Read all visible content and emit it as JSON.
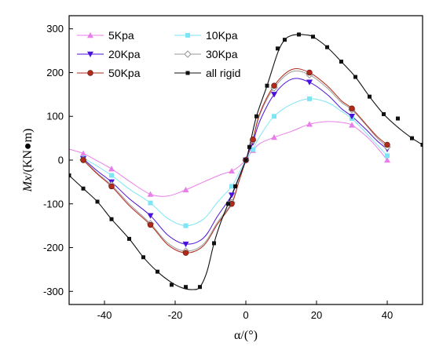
{
  "chart_data": {
    "type": "line",
    "xlabel": "α/(°)",
    "ylabel": "Mx/(KN●m)",
    "ylabel_italic_part": "Mx",
    "ylabel_rest": "/(KN●m)",
    "xlim": [
      -50,
      50
    ],
    "ylim": [
      -330,
      330
    ],
    "xticks": [
      -40,
      -20,
      0,
      20,
      40
    ],
    "yticks": [
      -300,
      -200,
      -100,
      0,
      100,
      200,
      300
    ],
    "grid": false,
    "legend_position": "top-left",
    "series": [
      {
        "name": "5Kpa",
        "color": "#e87fe8",
        "marker": "triangle-up",
        "x": [
          -46,
          -38,
          -27,
          -17,
          -4,
          0,
          2,
          8,
          18,
          30,
          40
        ],
        "y": [
          15,
          -20,
          -78,
          -68,
          -25,
          0,
          22,
          52,
          82,
          80,
          0
        ],
        "curve_x": [
          -50,
          -46,
          -42,
          -38,
          -33,
          -27,
          -22,
          -17,
          -12,
          -7,
          -4,
          -2,
          0,
          1,
          2,
          4,
          8,
          13,
          18,
          23,
          27,
          30,
          34,
          37,
          40
        ],
        "curve_y": [
          25,
          15,
          -2,
          -20,
          -48,
          -78,
          -82,
          -68,
          -50,
          -33,
          -25,
          -15,
          0,
          12,
          22,
          38,
          52,
          66,
          82,
          88,
          86,
          80,
          55,
          30,
          0
        ]
      },
      {
        "name": "10Kpa",
        "color": "#7ee5f5",
        "marker": "square",
        "x": [
          -46,
          -38,
          -27,
          -17,
          -4,
          0,
          2,
          8,
          18,
          30,
          40
        ],
        "y": [
          5,
          -35,
          -98,
          -150,
          -60,
          0,
          24,
          100,
          140,
          95,
          10
        ],
        "curve_x": [
          -46,
          -42,
          -38,
          -33,
          -27,
          -22,
          -17,
          -12,
          -8,
          -4,
          -2,
          0,
          1,
          2,
          4,
          8,
          13,
          18,
          23,
          27,
          30,
          34,
          37,
          40
        ],
        "curve_y": [
          5,
          -14,
          -35,
          -66,
          -98,
          -134,
          -150,
          -135,
          -96,
          -60,
          -30,
          0,
          12,
          24,
          55,
          100,
          128,
          140,
          132,
          112,
          95,
          62,
          36,
          10
        ]
      },
      {
        "name": "20Kpa",
        "color": "#4a10dc",
        "marker": "triangle-down",
        "x": [
          -46,
          -38,
          -27,
          -17,
          -4,
          0,
          2,
          8,
          18,
          30,
          40
        ],
        "y": [
          3,
          -50,
          -127,
          -192,
          -80,
          0,
          40,
          150,
          178,
          100,
          25
        ],
        "curve_x": [
          -46,
          -42,
          -38,
          -33,
          -27,
          -22,
          -17,
          -12,
          -8,
          -4,
          -2,
          0,
          1,
          2,
          4,
          8,
          13,
          18,
          23,
          27,
          30,
          34,
          37,
          40
        ],
        "curve_y": [
          3,
          -25,
          -50,
          -88,
          -127,
          -172,
          -192,
          -178,
          -128,
          -80,
          -40,
          0,
          20,
          40,
          90,
          150,
          185,
          178,
          150,
          118,
          100,
          70,
          45,
          25
        ]
      },
      {
        "name": "30Kpa",
        "color": "#9a9a9a",
        "marker": "diamond-open",
        "x": [
          -46,
          -38,
          -27,
          -17,
          -4,
          0,
          2,
          8,
          18,
          30,
          40
        ],
        "y": [
          1,
          -57,
          -145,
          -208,
          -97,
          0,
          45,
          165,
          195,
          115,
          30
        ],
        "curve_x": [
          -46,
          -42,
          -38,
          -33,
          -27,
          -22,
          -17,
          -12,
          -8,
          -4,
          -2,
          0,
          1,
          2,
          4,
          8,
          13,
          18,
          23,
          27,
          30,
          34,
          37,
          40
        ],
        "curve_y": [
          1,
          -30,
          -57,
          -100,
          -145,
          -190,
          -208,
          -192,
          -142,
          -97,
          -48,
          0,
          23,
          45,
          105,
          165,
          202,
          195,
          165,
          132,
          115,
          80,
          52,
          30
        ]
      },
      {
        "name": "50Kpa",
        "color": "#b22a1a",
        "marker": "circle",
        "x": [
          -46,
          -38,
          -27,
          -17,
          -4,
          0,
          2,
          8,
          18,
          30,
          40
        ],
        "y": [
          0,
          -60,
          -148,
          -212,
          -100,
          0,
          47,
          170,
          200,
          118,
          35
        ],
        "curve_x": [
          -46,
          -42,
          -38,
          -33,
          -27,
          -22,
          -17,
          -12,
          -8,
          -4,
          -2,
          0,
          1,
          2,
          4,
          8,
          13,
          18,
          23,
          27,
          30,
          34,
          37,
          40
        ],
        "curve_y": [
          0,
          -32,
          -60,
          -104,
          -148,
          -194,
          -212,
          -196,
          -146,
          -100,
          -50,
          0,
          24,
          47,
          108,
          170,
          207,
          200,
          170,
          136,
          118,
          82,
          55,
          35
        ]
      },
      {
        "name": "all rigid",
        "color": "#111111",
        "marker": "square-filled",
        "x": [
          -50,
          -46,
          -42,
          -38,
          -33,
          -29,
          -25,
          -21,
          -17,
          -13,
          -9,
          -5,
          -3,
          0,
          1,
          3,
          6,
          9,
          11,
          15,
          19,
          23,
          27,
          31,
          35,
          39,
          43,
          47,
          50
        ],
        "y": [
          -35,
          -65,
          -95,
          -135,
          -180,
          -222,
          -255,
          -285,
          -290,
          -290,
          -190,
          -100,
          -60,
          0,
          30,
          100,
          170,
          255,
          275,
          287,
          282,
          258,
          225,
          190,
          145,
          105,
          95,
          50,
          35
        ],
        "curve_x": [
          -50,
          -46,
          -42,
          -38,
          -33,
          -29,
          -25,
          -21,
          -18,
          -15,
          -13,
          -11,
          -9,
          -7,
          -5,
          -3,
          0,
          1,
          3,
          6,
          9,
          11,
          13,
          15,
          17,
          19,
          23,
          27,
          31,
          35,
          39,
          43,
          47,
          50
        ],
        "curve_y": [
          -35,
          -65,
          -95,
          -135,
          -180,
          -222,
          -255,
          -280,
          -292,
          -296,
          -290,
          -255,
          -190,
          -140,
          -100,
          -60,
          0,
          30,
          100,
          170,
          245,
          275,
          285,
          287,
          286,
          282,
          258,
          225,
          190,
          145,
          105,
          75,
          50,
          35
        ]
      }
    ]
  }
}
